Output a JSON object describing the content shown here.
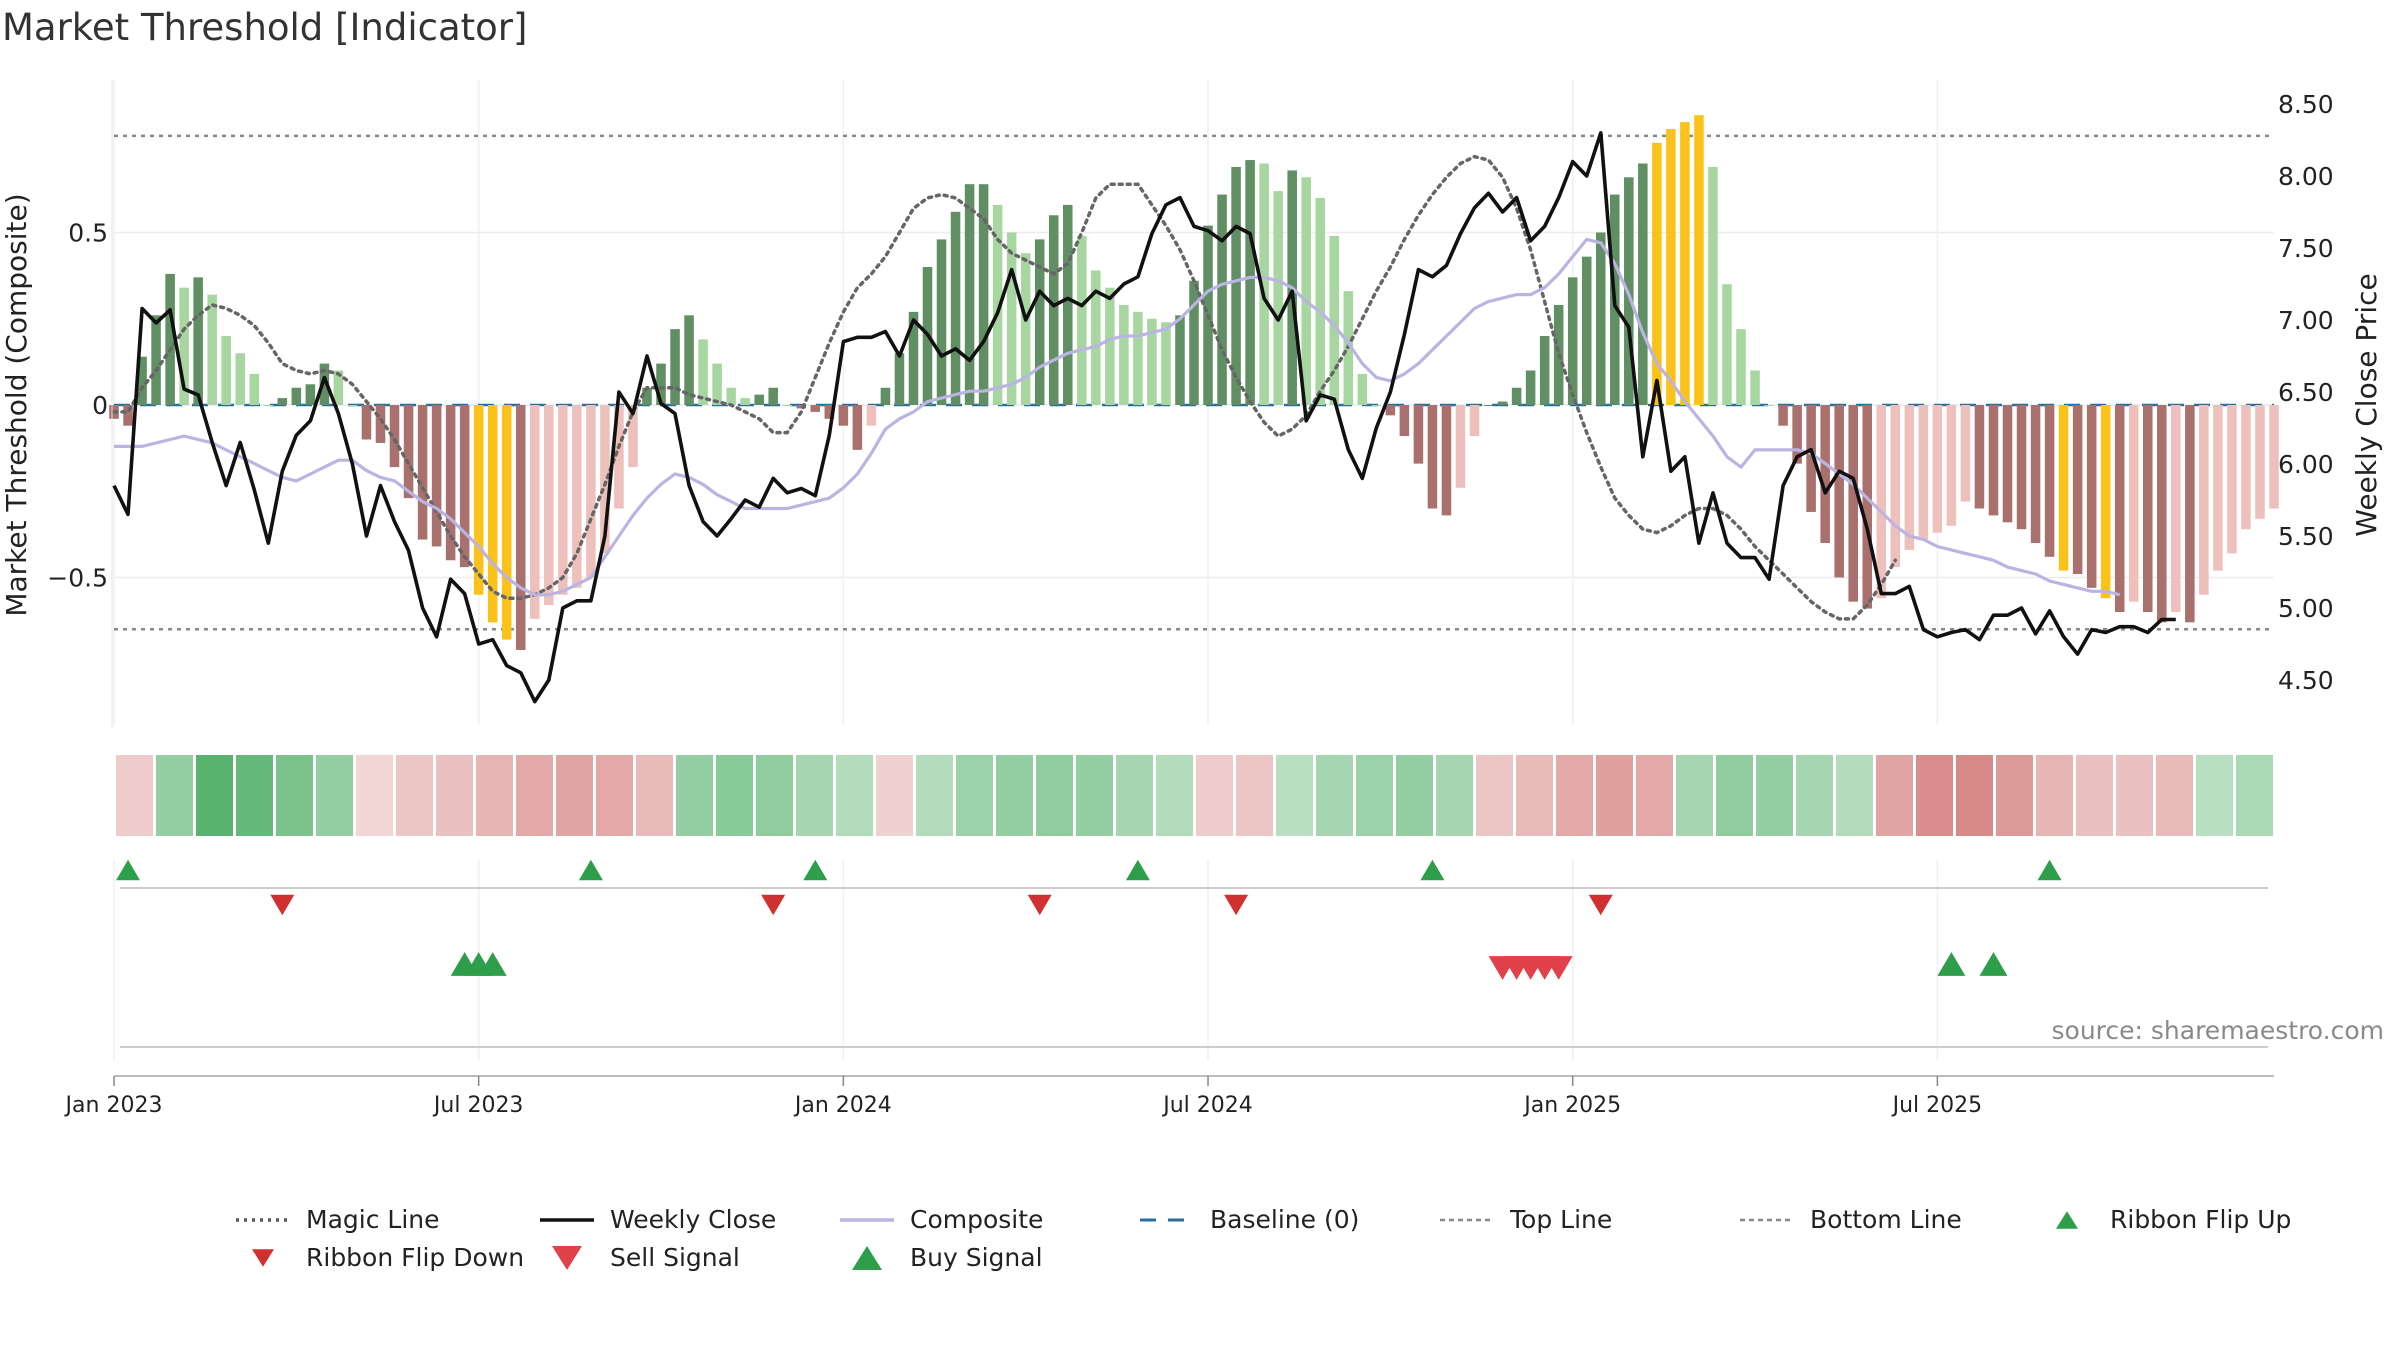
{
  "title": "Market Threshold [Indicator]",
  "source": "source: sharemaestro.com",
  "chart_data": {
    "type": "bar",
    "ylabel_left": "Market Threshold (Composite)",
    "ylabel_right": "Weekly Close Price",
    "left_ticks": [
      {
        "v": 0.5,
        "label": "0.5"
      },
      {
        "v": 0,
        "label": "0"
      },
      {
        "v": -0.5,
        "label": "−0.5"
      }
    ],
    "right_ticks": [
      {
        "v": 8.5,
        "label": "8.50"
      },
      {
        "v": 8.0,
        "label": "8.00"
      },
      {
        "v": 7.5,
        "label": "7.50"
      },
      {
        "v": 7.0,
        "label": "7.00"
      },
      {
        "v": 6.5,
        "label": "6.50"
      },
      {
        "v": 6.0,
        "label": "6.00"
      },
      {
        "v": 5.5,
        "label": "5.50"
      },
      {
        "v": 5.0,
        "label": "5.00"
      },
      {
        "v": 4.5,
        "label": "4.50"
      }
    ],
    "x_ticks": [
      {
        "week": 1,
        "label": "Jan 2023"
      },
      {
        "week": 27,
        "label": "Jul 2023"
      },
      {
        "week": 53,
        "label": "Jan 2024"
      },
      {
        "week": 79,
        "label": "Jul 2024"
      },
      {
        "week": 105,
        "label": "Jan 2025"
      },
      {
        "week": 131,
        "label": "Jul 2025"
      }
    ],
    "top_line": 0.78,
    "bottom_line": -0.65,
    "baseline": 0,
    "composite_bars": [
      -0.04,
      -0.06,
      0.14,
      0.26,
      0.38,
      0.34,
      0.37,
      0.32,
      0.2,
      0.15,
      0.09,
      0,
      0.02,
      0.05,
      0.06,
      0.12,
      0.1,
      0,
      -0.1,
      -0.11,
      -0.18,
      -0.27,
      -0.39,
      -0.41,
      -0.45,
      -0.47,
      -0.55,
      -0.63,
      -0.68,
      -0.71,
      -0.62,
      -0.58,
      -0.55,
      -0.53,
      -0.5,
      -0.43,
      -0.3,
      -0.18,
      0.05,
      0.12,
      0.22,
      0.26,
      0.19,
      0.12,
      0.05,
      0.02,
      0.03,
      0.05,
      0,
      -0.01,
      -0.02,
      -0.04,
      -0.06,
      -0.13,
      -0.06,
      0.05,
      0.15,
      0.27,
      0.4,
      0.48,
      0.56,
      0.64,
      0.64,
      0.58,
      0.5,
      0.44,
      0.48,
      0.55,
      0.58,
      0.49,
      0.39,
      0.34,
      0.29,
      0.27,
      0.25,
      0.24,
      0.26,
      0.36,
      0.52,
      0.61,
      0.69,
      0.71,
      0.7,
      0.62,
      0.68,
      0.66,
      0.6,
      0.49,
      0.33,
      0.09,
      0,
      -0.03,
      -0.09,
      -0.17,
      -0.3,
      -0.32,
      -0.24,
      -0.09,
      0,
      0.01,
      0.05,
      0.1,
      0.2,
      0.29,
      0.37,
      0.43,
      0.5,
      0.61,
      0.66,
      0.7,
      0.76,
      0.8,
      0.82,
      0.84,
      0.69,
      0.35,
      0.22,
      0.1,
      0,
      -0.06,
      -0.17,
      -0.31,
      -0.4,
      -0.5,
      -0.57,
      -0.59,
      -0.56,
      -0.47,
      -0.42,
      -0.39,
      -0.37,
      -0.35,
      -0.28,
      -0.3,
      -0.32,
      -0.34,
      -0.36,
      -0.4,
      -0.44,
      -0.48,
      -0.49,
      -0.53,
      -0.56,
      -0.6,
      -0.57,
      -0.6,
      -0.63,
      -0.6,
      -0.63,
      -0.55,
      -0.48,
      -0.43,
      -0.36,
      -0.33,
      -0.3
    ],
    "yellow_weeks": [
      27,
      28,
      29,
      111,
      112,
      113,
      114,
      140,
      143
    ],
    "weekly_close": [
      5.85,
      5.65,
      7.08,
      6.98,
      7.07,
      6.52,
      6.48,
      6.15,
      5.85,
      6.15,
      5.82,
      5.45,
      5.95,
      6.2,
      6.3,
      6.6,
      6.35,
      6.0,
      5.5,
      5.85,
      5.6,
      5.4,
      5.0,
      4.8,
      5.2,
      5.1,
      4.75,
      4.78,
      4.6,
      4.55,
      4.35,
      4.5,
      5.0,
      5.05,
      5.05,
      5.5,
      6.5,
      6.35,
      6.75,
      6.42,
      6.35,
      5.85,
      5.6,
      5.5,
      5.62,
      5.75,
      5.7,
      5.9,
      5.8,
      5.83,
      5.78,
      6.2,
      6.85,
      6.88,
      6.88,
      6.92,
      6.75,
      7.0,
      6.9,
      6.75,
      6.8,
      6.72,
      6.85,
      7.05,
      7.35,
      7.0,
      7.2,
      7.1,
      7.15,
      7.1,
      7.2,
      7.15,
      7.25,
      7.3,
      7.6,
      7.8,
      7.85,
      7.65,
      7.62,
      7.55,
      7.65,
      7.6,
      7.15,
      7.0,
      7.2,
      6.3,
      6.48,
      6.45,
      6.1,
      5.9,
      6.25,
      6.5,
      6.9,
      7.35,
      7.3,
      7.38,
      7.6,
      7.78,
      7.88,
      7.75,
      7.85,
      7.55,
      7.65,
      7.85,
      8.1,
      8.0,
      8.3,
      7.1,
      6.95,
      6.05,
      6.58,
      5.95,
      6.05,
      5.45,
      5.8,
      5.45,
      5.35,
      5.35,
      5.2,
      5.85,
      6.05,
      6.1,
      5.8,
      5.95,
      5.9,
      5.55,
      5.1,
      5.1,
      5.15,
      4.85,
      4.8,
      4.83,
      4.85,
      4.78,
      4.95,
      4.95,
      5.0,
      4.82,
      4.98,
      4.8,
      4.68,
      4.85,
      4.83,
      4.87,
      4.87,
      4.83,
      4.92,
      4.92
    ],
    "composite_line": [
      -0.12,
      -0.12,
      -0.12,
      -0.11,
      -0.1,
      -0.09,
      -0.1,
      -0.11,
      -0.13,
      -0.15,
      -0.17,
      -0.19,
      -0.21,
      -0.22,
      -0.2,
      -0.18,
      -0.16,
      -0.16,
      -0.19,
      -0.21,
      -0.22,
      -0.25,
      -0.28,
      -0.3,
      -0.33,
      -0.37,
      -0.41,
      -0.46,
      -0.5,
      -0.53,
      -0.55,
      -0.55,
      -0.54,
      -0.52,
      -0.5,
      -0.44,
      -0.38,
      -0.32,
      -0.27,
      -0.23,
      -0.2,
      -0.21,
      -0.23,
      -0.26,
      -0.28,
      -0.3,
      -0.3,
      -0.3,
      -0.3,
      -0.29,
      -0.28,
      -0.27,
      -0.24,
      -0.2,
      -0.14,
      -0.07,
      -0.04,
      -0.02,
      0.01,
      0.02,
      0.03,
      0.04,
      0.04,
      0.05,
      0.06,
      0.08,
      0.11,
      0.13,
      0.15,
      0.16,
      0.17,
      0.19,
      0.2,
      0.2,
      0.21,
      0.22,
      0.25,
      0.29,
      0.33,
      0.35,
      0.36,
      0.37,
      0.37,
      0.36,
      0.34,
      0.3,
      0.27,
      0.23,
      0.18,
      0.12,
      0.08,
      0.07,
      0.09,
      0.12,
      0.16,
      0.2,
      0.24,
      0.28,
      0.3,
      0.31,
      0.32,
      0.32,
      0.34,
      0.38,
      0.43,
      0.48,
      0.47,
      0.41,
      0.32,
      0.21,
      0.12,
      0.07,
      0.01,
      -0.04,
      -0.09,
      -0.15,
      -0.18,
      -0.13,
      -0.13,
      -0.13,
      -0.13,
      -0.14,
      -0.17,
      -0.2,
      -0.23,
      -0.27,
      -0.31,
      -0.35,
      -0.38,
      -0.39,
      -0.41,
      -0.42,
      -0.43,
      -0.44,
      -0.45,
      -0.47,
      -0.48,
      -0.49,
      -0.51,
      -0.52,
      -0.53,
      -0.54,
      -0.54,
      -0.55
    ],
    "magic_line": [
      -0.02,
      -0.02,
      0.05,
      0.1,
      0.16,
      0.22,
      0.26,
      0.29,
      0.28,
      0.26,
      0.23,
      0.18,
      0.12,
      0.1,
      0.09,
      0.1,
      0.09,
      0.06,
      0.01,
      -0.04,
      -0.1,
      -0.17,
      -0.24,
      -0.31,
      -0.38,
      -0.44,
      -0.49,
      -0.54,
      -0.56,
      -0.56,
      -0.55,
      -0.53,
      -0.5,
      -0.43,
      -0.33,
      -0.23,
      -0.12,
      -0.02,
      0.05,
      0.05,
      0.05,
      0.03,
      0.02,
      0.01,
      0.0,
      -0.02,
      -0.04,
      -0.08,
      -0.08,
      -0.02,
      0.08,
      0.18,
      0.27,
      0.34,
      0.38,
      0.43,
      0.5,
      0.57,
      0.6,
      0.61,
      0.6,
      0.57,
      0.54,
      0.48,
      0.44,
      0.42,
      0.4,
      0.38,
      0.41,
      0.5,
      0.6,
      0.64,
      0.64,
      0.64,
      0.58,
      0.52,
      0.45,
      0.36,
      0.26,
      0.16,
      0.08,
      0.01,
      -0.05,
      -0.09,
      -0.07,
      -0.03,
      0.04,
      0.1,
      0.17,
      0.25,
      0.33,
      0.4,
      0.48,
      0.55,
      0.61,
      0.66,
      0.7,
      0.72,
      0.71,
      0.66,
      0.57,
      0.45,
      0.3,
      0.15,
      0.03,
      -0.08,
      -0.18,
      -0.27,
      -0.32,
      -0.36,
      -0.37,
      -0.35,
      -0.32,
      -0.3,
      -0.3,
      -0.32,
      -0.36,
      -0.41,
      -0.45,
      -0.49,
      -0.53,
      -0.57,
      -0.6,
      -0.62,
      -0.62,
      -0.58,
      -0.52,
      -0.45
    ],
    "ribbon": [
      -0.25,
      0.55,
      1,
      0.9,
      0.75,
      0.55,
      -0.15,
      -0.3,
      -0.35,
      -0.45,
      -0.55,
      -0.6,
      -0.55,
      -0.4,
      0.55,
      0.65,
      0.6,
      0.45,
      0.35,
      -0.2,
      0.35,
      0.5,
      0.55,
      0.6,
      0.55,
      0.45,
      0.35,
      -0.25,
      -0.3,
      0.3,
      0.45,
      0.5,
      0.55,
      0.45,
      -0.3,
      -0.4,
      -0.55,
      -0.65,
      -0.55,
      0.45,
      0.6,
      0.55,
      0.45,
      0.35,
      -0.6,
      -0.8,
      -0.85,
      -0.7,
      -0.45,
      -0.35,
      -0.35,
      -0.4,
      0.3,
      0.4
    ],
    "ribbon_flip_up_weeks": [
      2,
      35,
      51,
      74,
      95,
      139
    ],
    "ribbon_flip_down_weeks": [
      13,
      48,
      67,
      81,
      107
    ],
    "buy_signal_weeks": [
      26,
      27,
      28
    ],
    "sell_signal_weeks": [
      100,
      101,
      102,
      103,
      104
    ],
    "buy_signal_weeks_2": [
      132,
      135
    ]
  },
  "legend": [
    {
      "label": "Magic Line",
      "symbol": "dotted-line",
      "color": "#555555"
    },
    {
      "label": "Weekly Close",
      "symbol": "solid-line",
      "color": "#111111"
    },
    {
      "label": "Composite",
      "symbol": "solid-line",
      "color": "#bbb3e2"
    },
    {
      "label": "Baseline (0)",
      "symbol": "dashed-line",
      "color": "#2b6f9e"
    },
    {
      "label": "Top Line",
      "symbol": "dashed-line-thin",
      "color": "#888888"
    },
    {
      "label": "Bottom Line",
      "symbol": "dashed-line-thin",
      "color": "#888888"
    },
    {
      "label": "Ribbon Flip Up",
      "symbol": "triangle-up",
      "color": "#2e9e4a"
    },
    {
      "label": "Ribbon Flip Down",
      "symbol": "triangle-down",
      "color": "#d03030"
    },
    {
      "label": "Sell Signal",
      "symbol": "triangle-down-large",
      "color": "#e0414b"
    },
    {
      "label": "Buy Signal",
      "symbol": "triangle-up-large",
      "color": "#2e9e4a"
    }
  ],
  "colors": {
    "bar_green_strong": "#5f8f63",
    "bar_green_light": "#a8d6a0",
    "bar_red_strong": "#a8716d",
    "bar_red_light": "#eec0bb",
    "bar_yellow": "#fbc21a"
  }
}
